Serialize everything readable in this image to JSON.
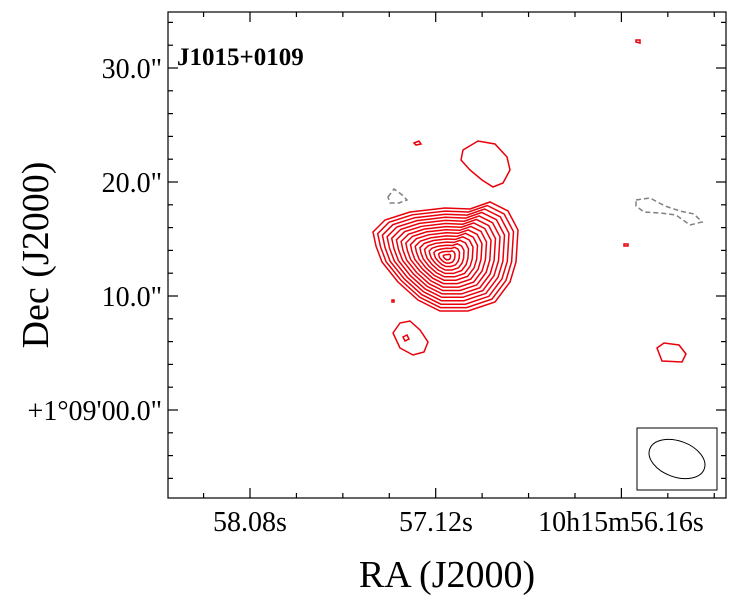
{
  "chart_data": {
    "type": "contour",
    "source_label": "J1015+0109",
    "xlabel": "RA (J2000)",
    "ylabel": "Dec (J2000)",
    "x_tick_labels": [
      "58.08s",
      "57.12s",
      "10h15m56.16s"
    ],
    "y_tick_labels": [
      "30.0\"",
      "20.0\"",
      "10.0\"",
      "+1°09'00.0\""
    ],
    "grid": false,
    "beam_inset": "bottom-right",
    "contour_colors": {
      "positive": "#e8000b",
      "negative": "#808080",
      "beam": "#000000"
    },
    "contour_styles": {
      "positive": "solid",
      "negative": "dashed"
    }
  }
}
